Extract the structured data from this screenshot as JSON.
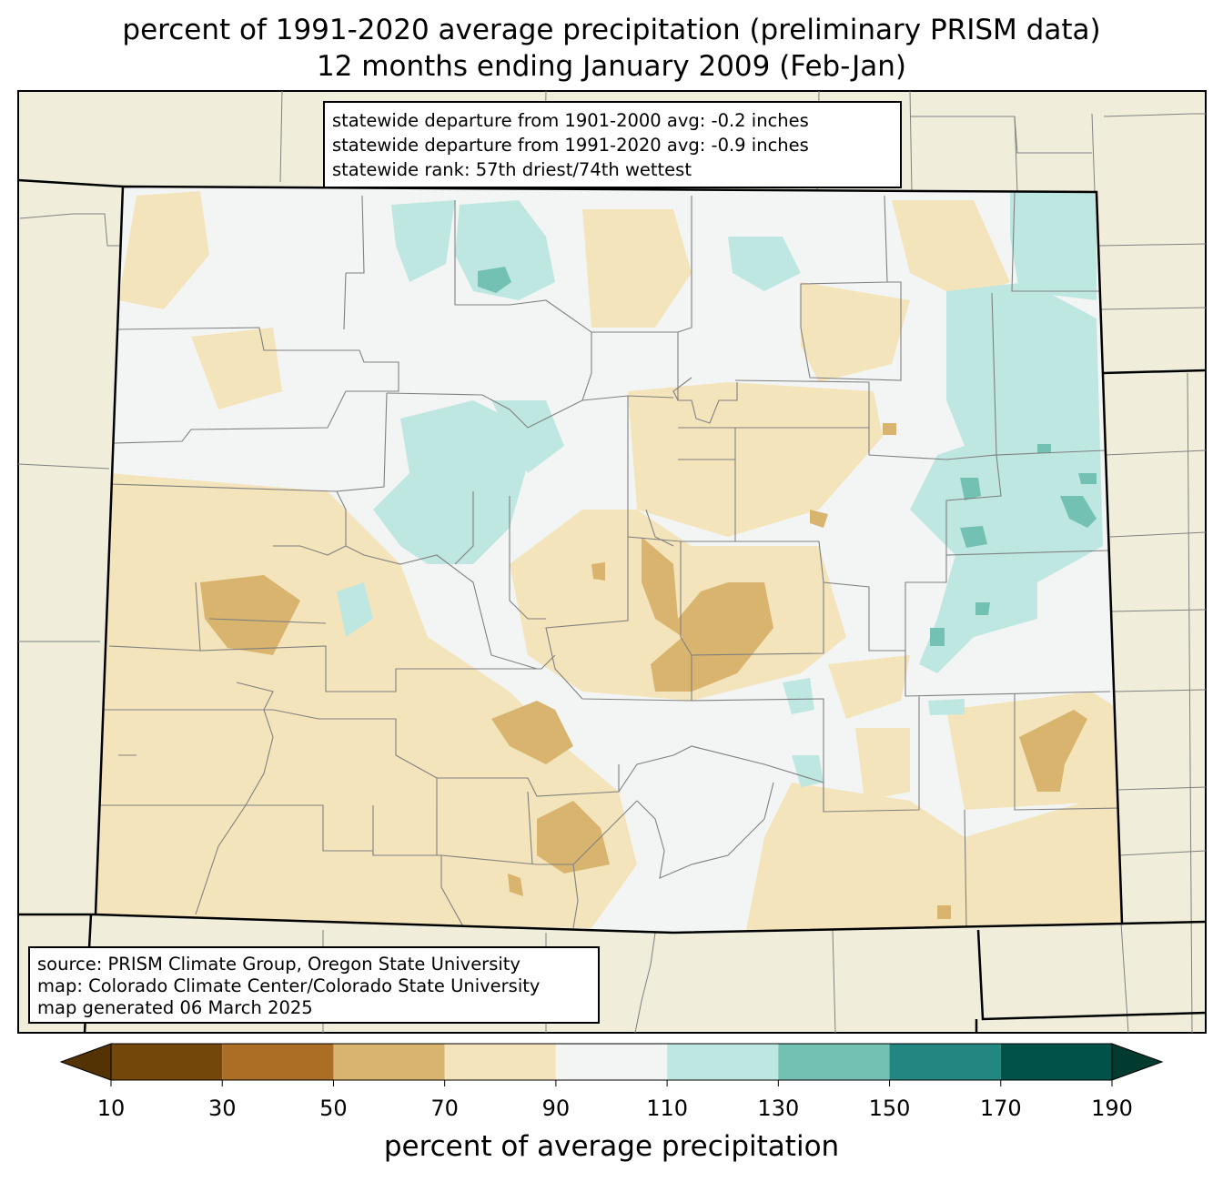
{
  "title": {
    "line1": "percent of 1991-2020 average precipitation (preliminary PRISM data)",
    "line2": "12 months ending January 2009 (Feb-Jan)"
  },
  "stats": {
    "line1": "statewide departure from 1901-2000 avg: -0.2 inches",
    "line2": "statewide departure from 1991-2020 avg: -0.9 inches",
    "line3": "statewide rank: 57th driest/74th wettest"
  },
  "source": {
    "line1": "source: PRISM Climate Group, Oregon State University",
    "line2": "map: Colorado Climate Center/Colorado State University",
    "line3": "map generated 06 March 2025"
  },
  "colorbar": {
    "label": "percent of average precipitation",
    "ticks": [
      "10",
      "30",
      "50",
      "70",
      "90",
      "110",
      "130",
      "150",
      "170",
      "190"
    ],
    "colors": [
      "#734709",
      "#ab6e24",
      "#d9b46e",
      "#f4e4bb",
      "#f3f5f4",
      "#bfe7e1",
      "#72c1b3",
      "#228781",
      "#01534a"
    ],
    "extend_low_color": "#533204",
    "extend_high_color": "#013b2f"
  },
  "map_colors": {
    "background": "#f0eedb",
    "state_fill": "#f3f5f4",
    "county_line": "#808080"
  }
}
